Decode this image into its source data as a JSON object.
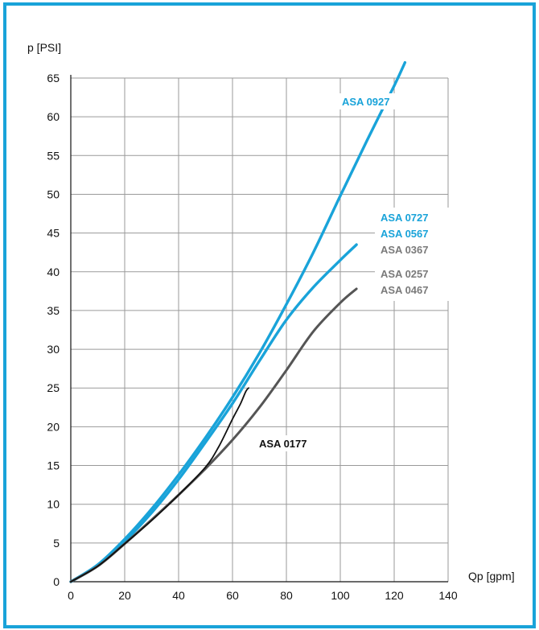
{
  "chart_data": {
    "type": "line",
    "title": "",
    "xlabel": "Qp [gpm]",
    "ylabel": "p [PSI]",
    "xlim": [
      0,
      140
    ],
    "ylim": [
      0,
      65
    ],
    "x_ticks": [
      0,
      20,
      40,
      60,
      80,
      100,
      120,
      140
    ],
    "y_ticks": [
      0,
      5,
      10,
      15,
      20,
      25,
      30,
      35,
      40,
      45,
      50,
      55,
      60,
      65
    ],
    "grid": true,
    "series": [
      {
        "name": "ASA 0927",
        "color": "#19a3d9",
        "points": [
          [
            0,
            0
          ],
          [
            10,
            2.2
          ],
          [
            20,
            5.5
          ],
          [
            30,
            9.4
          ],
          [
            40,
            13.8
          ],
          [
            50,
            18.6
          ],
          [
            60,
            23.8
          ],
          [
            70,
            29.5
          ],
          [
            80,
            35.8
          ],
          [
            90,
            42.5
          ],
          [
            100,
            49.8
          ],
          [
            110,
            57
          ],
          [
            120,
            64
          ],
          [
            124,
            67
          ]
        ]
      },
      {
        "name": "ASA 0727 / ASA 0567",
        "color": "#19a3d9",
        "points": [
          [
            0,
            0
          ],
          [
            10,
            2.1
          ],
          [
            20,
            5.2
          ],
          [
            30,
            8.9
          ],
          [
            40,
            13.2
          ],
          [
            50,
            18
          ],
          [
            60,
            23
          ],
          [
            70,
            28.5
          ],
          [
            80,
            33.8
          ],
          [
            90,
            38
          ],
          [
            100,
            41.5
          ],
          [
            106,
            43.5
          ]
        ]
      },
      {
        "name": "ASA 0367 / ASA 0257 / ASA 0467",
        "color": "#555555",
        "points": [
          [
            0,
            0
          ],
          [
            10,
            2
          ],
          [
            20,
            4.9
          ],
          [
            30,
            8
          ],
          [
            40,
            11.2
          ],
          [
            50,
            14.6
          ],
          [
            60,
            18.3
          ],
          [
            70,
            22.5
          ],
          [
            80,
            27.3
          ],
          [
            90,
            32.3
          ],
          [
            100,
            36
          ],
          [
            106,
            37.8
          ]
        ]
      },
      {
        "name": "ASA 0177",
        "color": "#111111",
        "points": [
          [
            0,
            0
          ],
          [
            10,
            2
          ],
          [
            20,
            4.9
          ],
          [
            30,
            7.9
          ],
          [
            40,
            11.2
          ],
          [
            50,
            14.8
          ],
          [
            55,
            17.5
          ],
          [
            60,
            21
          ],
          [
            63,
            23
          ],
          [
            65,
            24.6
          ],
          [
            66,
            25
          ]
        ]
      }
    ],
    "annotations": [
      {
        "text": "ASA 0927",
        "color": "#19a3d9"
      },
      {
        "text": "ASA 0727",
        "color": "#19a3d9"
      },
      {
        "text": "ASA 0567",
        "color": "#19a3d9"
      },
      {
        "text": "ASA 0367",
        "color": "#7a7a7a"
      },
      {
        "text": "ASA 0257",
        "color": "#7a7a7a"
      },
      {
        "text": "ASA 0467",
        "color": "#7a7a7a"
      },
      {
        "text": "ASA 0177",
        "color": "#111111"
      }
    ]
  }
}
